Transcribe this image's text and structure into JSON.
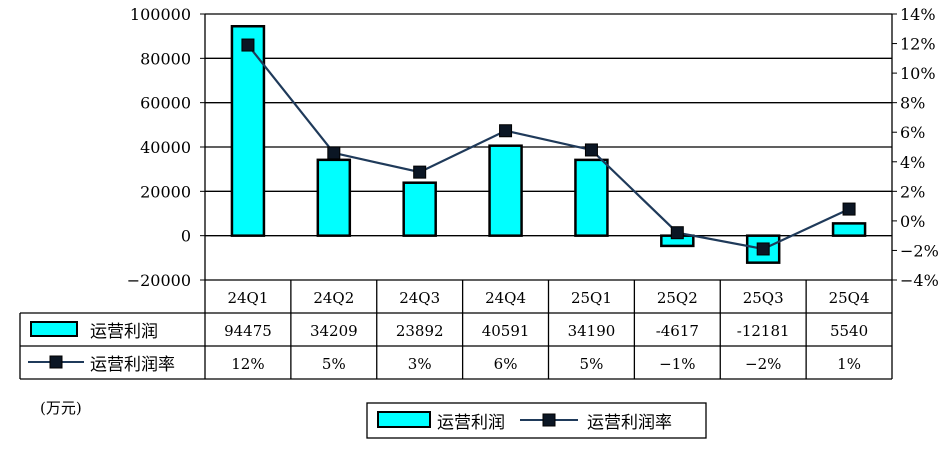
{
  "chart_data": {
    "type": "bar",
    "categories": [
      "24Q1",
      "24Q2",
      "24Q3",
      "24Q4",
      "25Q1",
      "25Q2",
      "25Q3",
      "25Q4"
    ],
    "series": [
      {
        "name": "运营利润",
        "type": "bar",
        "axis": "left",
        "values": [
          94475,
          34209,
          23892,
          40591,
          34190,
          -4617,
          -12181,
          5540
        ],
        "labels": [
          "94475",
          "34209",
          "23892",
          "40591",
          "34190",
          "-4617",
          "-12181",
          "5540"
        ],
        "color": "#00ffff"
      },
      {
        "name": "运营利润率",
        "type": "line",
        "axis": "right",
        "values": [
          11.9,
          4.6,
          3.3,
          6.1,
          4.8,
          -0.8,
          -1.9,
          0.8
        ],
        "labels": [
          "12%",
          "5%",
          "3%",
          "6%",
          "5%",
          "−1%",
          "−2%",
          "1%"
        ],
        "color": "#1f3a5a"
      }
    ],
    "y_left": {
      "lim": [
        -20000,
        100000
      ],
      "ticks": [
        -20000,
        0,
        20000,
        40000,
        60000,
        80000,
        100000
      ],
      "tick_labels": [
        "−20000",
        "0",
        "20000",
        "40000",
        "60000",
        "80000",
        "100000"
      ]
    },
    "y_right": {
      "lim": [
        -4,
        14
      ],
      "ticks": [
        -4,
        -2,
        0,
        2,
        4,
        6,
        8,
        10,
        12,
        14
      ],
      "tick_labels": [
        "−4%",
        "−2%",
        "0%",
        "2%",
        "4%",
        "6%",
        "8%",
        "10%",
        "12%",
        "14%"
      ]
    },
    "unit_label": "(万元)",
    "data_table": true,
    "grid": true,
    "legend_position": "bottom"
  }
}
